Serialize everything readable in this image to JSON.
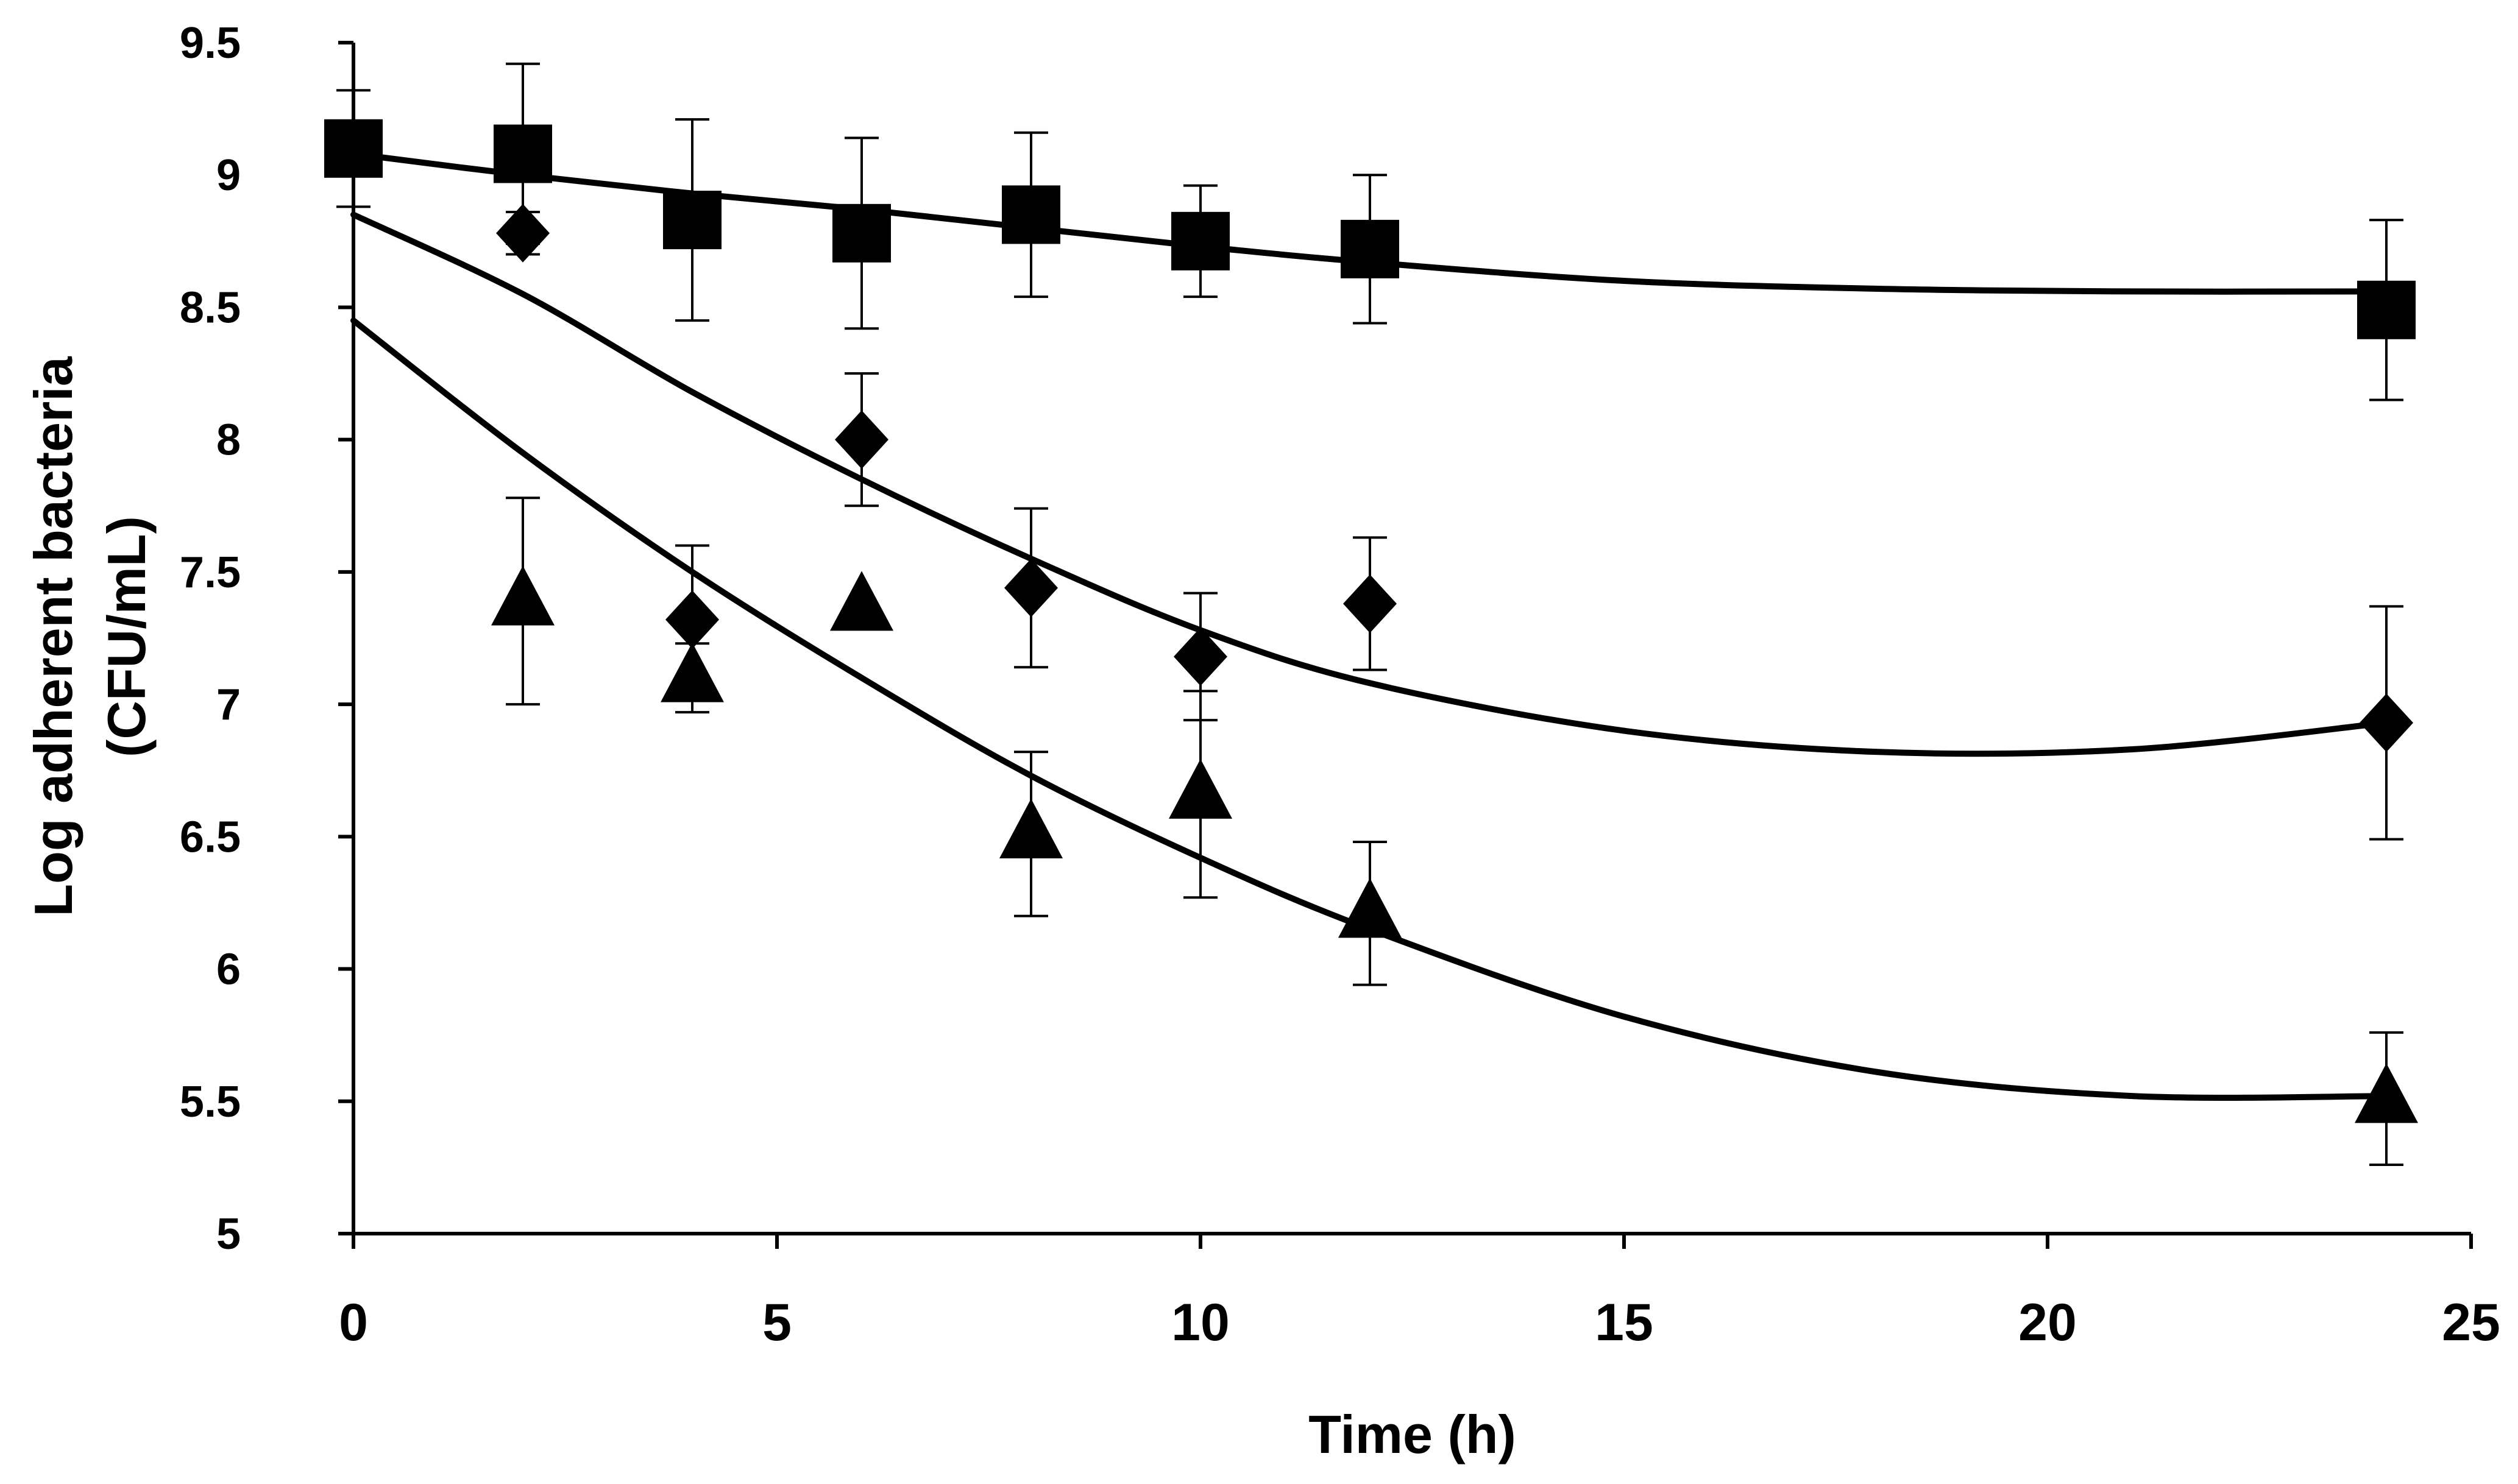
{
  "chart_data": {
    "type": "scatter",
    "title": "",
    "xlabel": "Time (h)",
    "ylabel_lines": [
      "Log adherent bacteria",
      "(CFU/mL)"
    ],
    "xlim": [
      0,
      25
    ],
    "ylim": [
      5,
      9.5
    ],
    "x_ticks": [
      0,
      5,
      10,
      15,
      20,
      25
    ],
    "x_tick_labels": [
      "0",
      "5",
      "10",
      "15",
      "20",
      "25"
    ],
    "y_ticks": [
      5,
      5.5,
      6,
      6.5,
      7,
      7.5,
      8,
      8.5,
      9,
      9.5
    ],
    "y_tick_labels": [
      "5",
      "5.5",
      "6",
      "6.5",
      "7",
      "7.5",
      "8",
      "8.5",
      "9",
      "9.5"
    ],
    "grid": false,
    "legend": "none",
    "series": [
      {
        "name": "square",
        "marker": "square",
        "x": [
          0,
          2,
          4,
          6,
          8,
          10,
          12,
          24
        ],
        "y": [
          9.1,
          9.08,
          8.83,
          8.78,
          8.85,
          8.75,
          8.72,
          8.49
        ],
        "error": [
          0.22,
          0.34,
          0.38,
          0.36,
          0.31,
          0.21,
          0.28,
          0.34
        ],
        "trend": [
          [
            0,
            9.08
          ],
          [
            2,
            9.0
          ],
          [
            4,
            8.93
          ],
          [
            6,
            8.87
          ],
          [
            8,
            8.8
          ],
          [
            10,
            8.73
          ],
          [
            12,
            8.67
          ],
          [
            15,
            8.6
          ],
          [
            18,
            8.57
          ],
          [
            21,
            8.56
          ],
          [
            24,
            8.56
          ]
        ]
      },
      {
        "name": "diamond",
        "marker": "diamond",
        "x": [
          2,
          4,
          6,
          8,
          10,
          12,
          24
        ],
        "y": [
          8.78,
          7.32,
          8.0,
          7.44,
          7.18,
          7.38,
          6.93
        ],
        "error": [
          0.08,
          0.28,
          0.25,
          0.3,
          0.24,
          0.25,
          0.44
        ],
        "trend": [
          [
            0,
            8.85
          ],
          [
            2,
            8.55
          ],
          [
            4,
            8.18
          ],
          [
            6,
            7.85
          ],
          [
            8,
            7.55
          ],
          [
            10,
            7.28
          ],
          [
            12,
            7.08
          ],
          [
            15,
            6.9
          ],
          [
            18,
            6.82
          ],
          [
            21,
            6.83
          ],
          [
            24,
            6.93
          ]
        ]
      },
      {
        "name": "triangle",
        "marker": "triangle",
        "x": [
          2,
          4,
          6,
          8,
          10,
          12,
          24
        ],
        "y": [
          7.39,
          7.1,
          7.37,
          6.51,
          6.66,
          6.21,
          5.51
        ],
        "error": [
          0.39,
          0.13,
          0.0,
          0.31,
          0.39,
          0.27,
          0.25
        ],
        "trend": [
          [
            0,
            8.45
          ],
          [
            2,
            7.95
          ],
          [
            4,
            7.5
          ],
          [
            6,
            7.1
          ],
          [
            8,
            6.73
          ],
          [
            10,
            6.42
          ],
          [
            12,
            6.15
          ],
          [
            15,
            5.82
          ],
          [
            18,
            5.61
          ],
          [
            21,
            5.52
          ],
          [
            24,
            5.52
          ]
        ]
      }
    ]
  }
}
